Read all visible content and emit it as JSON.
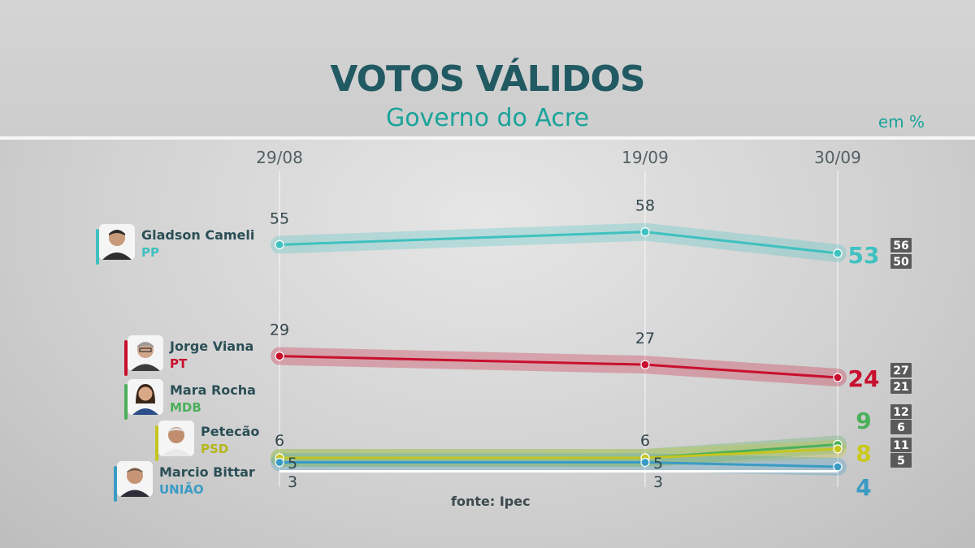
{
  "header": {
    "title": "VOTOS VÁLIDOS",
    "subtitle": "Governo do Acre",
    "unit": "em %"
  },
  "footer": {
    "source": "fonte: Ipec"
  },
  "colors": {
    "title": "#215a63",
    "accent": "#1aa39a",
    "cameli": "#3fc1c0",
    "viana": "#c8102e",
    "rocha": "#4bb05a",
    "petecao": "#c4c51f",
    "bittar": "#3a9bc4"
  },
  "candidates": [
    {
      "name": "Gladson Cameli",
      "party": "PP",
      "color": "#3fc1c0",
      "icon": "person-avatar"
    },
    {
      "name": "Jorge Viana",
      "party": "PT",
      "color": "#c8102e",
      "icon": "person-avatar"
    },
    {
      "name": "Mara Rocha",
      "party": "MDB",
      "color": "#4bb05a",
      "icon": "person-avatar"
    },
    {
      "name": "Petecão",
      "party": "PSD",
      "color": "#c4c51f",
      "icon": "person-avatar"
    },
    {
      "name": "Marcio Bittar",
      "party": "UNIÃO",
      "color": "#3a9bc4",
      "icon": "person-avatar"
    }
  ],
  "chart_data": {
    "type": "line",
    "title": "VOTOS VÁLIDOS",
    "subtitle": "Governo do Acre",
    "unit": "em %",
    "x": [
      "29/08",
      "19/09",
      "30/09"
    ],
    "series": [
      {
        "name": "Gladson Cameli",
        "party": "PP",
        "values": [
          55,
          58,
          53
        ],
        "margin": {
          "high": 56,
          "low": 50
        }
      },
      {
        "name": "Jorge Viana",
        "party": "PT",
        "values": [
          29,
          27,
          24
        ],
        "margin": {
          "high": 27,
          "low": 21
        }
      },
      {
        "name": "Mara Rocha",
        "party": "MDB",
        "values": [
          6,
          6,
          9
        ],
        "margin": {
          "high": 12,
          "low": 6
        }
      },
      {
        "name": "Petecão",
        "party": "PSD",
        "values": [
          6,
          6,
          8
        ],
        "margin": {
          "high": 11,
          "low": 5
        }
      },
      {
        "name": "Marcio Bittar",
        "party": "UNIÃO",
        "values": [
          5,
          5,
          4
        ]
      },
      {
        "name": "",
        "values": [
          3,
          3,
          null
        ]
      }
    ],
    "point_labels": {
      "29/08": [
        "55",
        "29",
        "6",
        "5",
        "3"
      ],
      "19/09": [
        "58",
        "27",
        "6",
        "5",
        "3"
      ]
    },
    "final_labels": [
      "53",
      "24",
      "9",
      "8",
      "4"
    ],
    "grid": true,
    "legend": "left"
  }
}
